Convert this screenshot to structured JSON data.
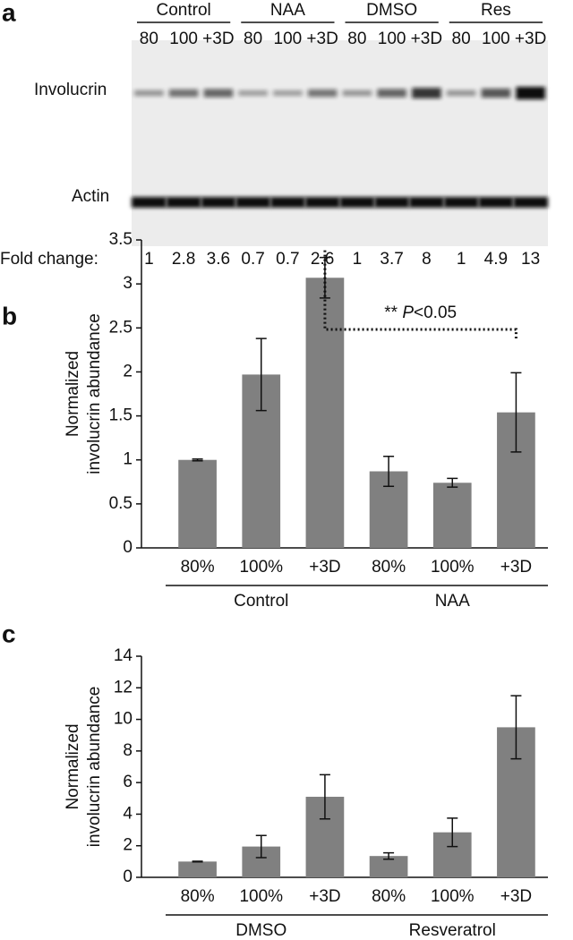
{
  "blot": {
    "panel": "a",
    "groups": [
      {
        "name": "Control",
        "lanes": [
          "80",
          "100",
          "+3D"
        ]
      },
      {
        "name": "NAA",
        "lanes": [
          "80",
          "100",
          "+3D"
        ]
      },
      {
        "name": "DMSO",
        "lanes": [
          "80",
          "100",
          "+3D"
        ]
      },
      {
        "name": "Res",
        "lanes": [
          "80",
          "100",
          "+3D"
        ]
      }
    ],
    "rows": [
      "Involucrin",
      "Actin"
    ],
    "fold_label": "Fold change:",
    "fold_change": [
      1,
      2.8,
      3.6,
      0.7,
      0.7,
      2.6,
      1,
      3.7,
      8,
      1,
      4.9,
      13
    ]
  },
  "chart_data": [
    {
      "type": "bar",
      "panel": "b",
      "ylabel": [
        "Normalized",
        "involucrin abundance"
      ],
      "categories": [
        "80%",
        "100%",
        "+3D",
        "80%",
        "100%",
        "+3D"
      ],
      "groups": [
        "Control",
        "NAA"
      ],
      "values": [
        1,
        1.97,
        3.07,
        0.87,
        0.74,
        1.54
      ],
      "errors": [
        0.01,
        0.41,
        0.23,
        0.17,
        0.05,
        0.45
      ],
      "color": "#808080",
      "ylim": [
        0,
        3.5
      ],
      "yticks": [
        0,
        0.5,
        1,
        1.5,
        2,
        2.5,
        3,
        3.5
      ],
      "annotation": [
        "**",
        "P",
        "<0.05"
      ],
      "bracket": [
        2,
        5
      ]
    },
    {
      "type": "bar",
      "panel": "c",
      "ylabel": [
        "Normalized",
        "involucrin abundance"
      ],
      "categories": [
        "80%",
        "100%",
        "+3D",
        "80%",
        "100%",
        "+3D"
      ],
      "groups": [
        "DMSO",
        "Resveratrol"
      ],
      "values": [
        1,
        1.95,
        5.1,
        1.35,
        2.85,
        9.5
      ],
      "errors": [
        0.02,
        0.7,
        1.4,
        0.2,
        0.9,
        2.0
      ],
      "color": "#808080",
      "ylim": [
        0,
        14
      ],
      "yticks": [
        0,
        2,
        4,
        6,
        8,
        10,
        12,
        14
      ]
    }
  ]
}
